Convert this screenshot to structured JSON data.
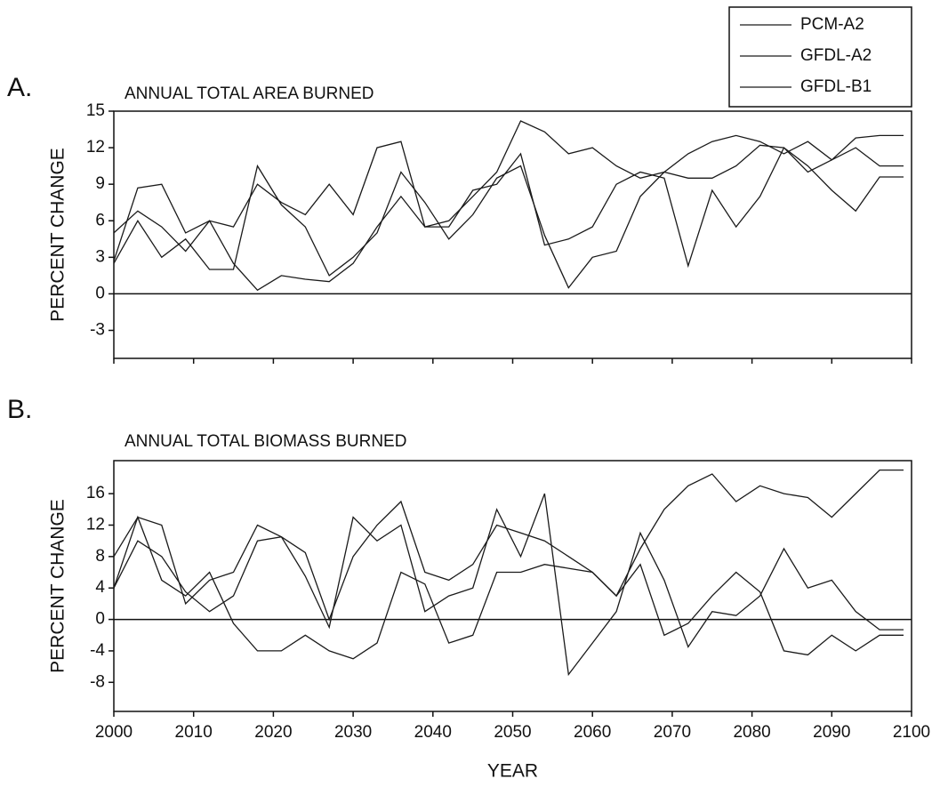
{
  "chart_data": [
    {
      "type": "line",
      "panel_label": "A.",
      "title": "ANNUAL TOTAL AREA BURNED",
      "y_label": "PERCENT CHANGE",
      "x": [
        2000,
        2003,
        2006,
        2009,
        2012,
        2015,
        2018,
        2021,
        2024,
        2027,
        2030,
        2033,
        2036,
        2039,
        2042,
        2045,
        2048,
        2051,
        2054,
        2057,
        2060,
        2063,
        2066,
        2069,
        2072,
        2075,
        2078,
        2081,
        2084,
        2087,
        2090,
        2093,
        2096,
        2099
      ],
      "series": [
        {
          "name": "PCM-A2",
          "color": "#1a1a1a",
          "values": [
            5,
            6.8,
            5.5,
            3.5,
            6,
            2.5,
            0.3,
            1.5,
            1.2,
            1,
            2.5,
            5.5,
            8,
            5.5,
            6,
            8,
            10,
            14.2,
            13.3,
            11.5,
            12,
            10.5,
            9.5,
            10,
            11.5,
            12.5,
            13,
            12.5,
            11.5,
            12.5,
            11,
            12.8,
            13,
            13
          ]
        },
        {
          "name": "GFDL-A2",
          "color": "#1a1a1a",
          "values": [
            2.5,
            6,
            3,
            4.5,
            2,
            2,
            10.5,
            7.3,
            5.5,
            1.5,
            3,
            5,
            10,
            7.5,
            4.5,
            6.5,
            9.5,
            10.5,
            4.8,
            0.5,
            3,
            3.5,
            8,
            10,
            9.5,
            9.5,
            10.5,
            12.2,
            12,
            10,
            11,
            12,
            10.5,
            10.5
          ]
        },
        {
          "name": "GFDL-B1",
          "color": "#1a1a1a",
          "values": [
            2.7,
            8.7,
            9,
            5,
            6,
            5.5,
            9,
            7.5,
            6.5,
            9,
            6.5,
            12,
            12.5,
            5.5,
            5.5,
            8.5,
            9,
            11.5,
            4,
            4.5,
            5.5,
            9,
            10,
            9.5,
            2.3,
            8.5,
            5.5,
            8,
            12,
            10.5,
            8.5,
            6.8,
            9.6,
            9.6
          ]
        }
      ],
      "xlim": [
        2000,
        2100
      ],
      "xticks": [
        2000,
        2010,
        2020,
        2030,
        2040,
        2050,
        2060,
        2070,
        2080,
        2090,
        2100
      ],
      "xtick_labels": false,
      "ylim": [
        -5.3,
        15
      ],
      "yticks": [
        -3,
        0,
        3,
        6,
        9,
        12,
        15
      ],
      "zero_line": true,
      "legend": "top-right"
    },
    {
      "type": "line",
      "panel_label": "B.",
      "title": "ANNUAL TOTAL BIOMASS BURNED",
      "y_label": "PERCENT CHANGE",
      "x_label": "YEAR",
      "x": [
        2000,
        2003,
        2006,
        2009,
        2012,
        2015,
        2018,
        2021,
        2024,
        2027,
        2030,
        2033,
        2036,
        2039,
        2042,
        2045,
        2048,
        2051,
        2054,
        2057,
        2060,
        2063,
        2066,
        2069,
        2072,
        2075,
        2078,
        2081,
        2084,
        2087,
        2090,
        2093,
        2096,
        2099
      ],
      "series": [
        {
          "color": "#1a1a1a",
          "values": [
            8,
            13,
            12,
            2,
            5,
            6,
            12,
            10.5,
            8.5,
            0,
            8,
            12,
            15,
            6,
            5,
            7,
            12,
            11,
            10,
            8,
            6,
            3,
            9,
            14,
            17,
            18.5,
            15,
            17,
            16,
            15.5,
            13,
            16,
            19,
            19
          ]
        },
        {
          "color": "#1a1a1a",
          "values": [
            4,
            10,
            8,
            3.5,
            1,
            3,
            10,
            10.5,
            5.5,
            -1,
            13,
            10,
            12,
            1,
            3,
            4,
            14,
            8,
            16,
            -7,
            -3,
            1,
            11,
            5,
            -3.5,
            1,
            0.5,
            3,
            9,
            4,
            5,
            1,
            -1.3,
            -1.3
          ]
        },
        {
          "color": "#1a1a1a",
          "values": [
            4,
            13,
            5,
            3,
            6,
            -0.5,
            -4,
            -4,
            -2,
            -4,
            -5,
            -3,
            6,
            4.5,
            -3,
            -2,
            6,
            6,
            7,
            6.5,
            6,
            3,
            7,
            -2,
            -0.5,
            3,
            6,
            3.5,
            -4,
            -4.5,
            -2,
            -4,
            -2,
            -2
          ]
        }
      ],
      "xlim": [
        2000,
        2100
      ],
      "xticks": [
        2000,
        2010,
        2020,
        2030,
        2040,
        2050,
        2060,
        2070,
        2080,
        2090,
        2100
      ],
      "xtick_labels": true,
      "ylim": [
        -11.7,
        20.2
      ],
      "yticks": [
        -8,
        -4,
        0,
        4,
        8,
        12,
        16
      ],
      "zero_line": true
    }
  ]
}
